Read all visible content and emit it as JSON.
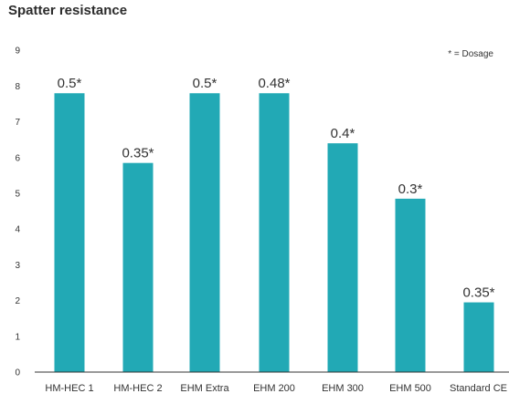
{
  "chart_data": {
    "type": "bar",
    "title": "Spatter resistance",
    "note": "* = Dosage",
    "categories": [
      "HM-HEC 1",
      "HM-HEC 2",
      "EHM Extra",
      "EHM 200",
      "EHM 300",
      "EHM 500",
      "Standard CE"
    ],
    "values": [
      7.8,
      5.85,
      7.8,
      7.8,
      6.4,
      4.85,
      1.95
    ],
    "data_labels": [
      "0.5*",
      "0.35*",
      "0.5*",
      "0.48*",
      "0.4*",
      "0.3*",
      "0.35*"
    ],
    "yticks": [
      0,
      1,
      2,
      3,
      4,
      5,
      6,
      7,
      8,
      9
    ],
    "ylim": [
      0,
      9
    ],
    "xlabel": "",
    "ylabel": "",
    "grid": false,
    "bar_color": "#22a9b5",
    "axis_color": "#333333"
  }
}
